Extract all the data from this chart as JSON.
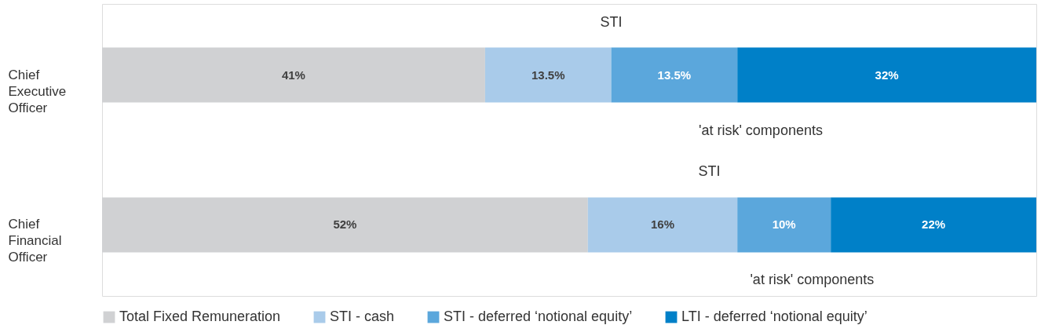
{
  "chart_data": {
    "type": "bar",
    "orientation": "horizontal",
    "stacked": true,
    "legend": "bottom",
    "grid": false,
    "categories": [
      "Chief Executive Officer",
      "Chief Financial Officer"
    ],
    "series": [
      {
        "name": "Total Fixed Remuneration",
        "color": "#d0d1d3",
        "values": [
          41,
          52
        ],
        "value_labels": [
          "41%",
          "52%"
        ]
      },
      {
        "name": "STI - cash",
        "color": "#a9cbea",
        "values": [
          13.5,
          16
        ],
        "value_labels": [
          "13.5%",
          "16%"
        ]
      },
      {
        "name": "STI - deferred ‘notional equity’",
        "color": "#5ba7dc",
        "values": [
          13.5,
          10
        ],
        "value_labels": [
          "13.5%",
          "10%"
        ]
      },
      {
        "name": "LTI - deferred ‘notional equity’",
        "color": "#0080c8",
        "values": [
          32,
          22
        ],
        "value_labels": [
          "32%",
          "22%"
        ]
      }
    ],
    "annotations": [
      "STI",
      "'at risk' components",
      "STI",
      "'at risk' components"
    ]
  }
}
